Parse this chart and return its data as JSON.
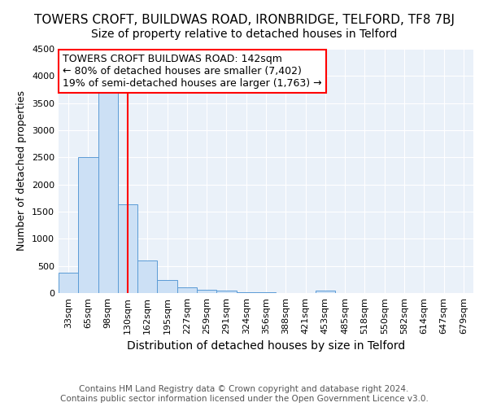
{
  "title": "TOWERS CROFT, BUILDWAS ROAD, IRONBRIDGE, TELFORD, TF8 7BJ",
  "subtitle": "Size of property relative to detached houses in Telford",
  "xlabel": "Distribution of detached houses by size in Telford",
  "ylabel": "Number of detached properties",
  "categories": [
    "33sqm",
    "65sqm",
    "98sqm",
    "130sqm",
    "162sqm",
    "195sqm",
    "227sqm",
    "259sqm",
    "291sqm",
    "324sqm",
    "356sqm",
    "388sqm",
    "421sqm",
    "453sqm",
    "485sqm",
    "518sqm",
    "550sqm",
    "582sqm",
    "614sqm",
    "647sqm",
    "679sqm"
  ],
  "values": [
    370,
    2500,
    3700,
    1630,
    600,
    240,
    110,
    55,
    40,
    20,
    20,
    5,
    5,
    50,
    0,
    0,
    0,
    0,
    0,
    0,
    0
  ],
  "bar_color": "#cce0f5",
  "bar_edge_color": "#5b9bd5",
  "red_line_x": 3.0,
  "annotation_line1": "TOWERS CROFT BUILDWAS ROAD: 142sqm",
  "annotation_line2": "← 80% of detached houses are smaller (7,402)",
  "annotation_line3": "19% of semi-detached houses are larger (1,763) →",
  "annotation_box_color": "white",
  "annotation_box_edge": "red",
  "ylim": [
    0,
    4500
  ],
  "yticks": [
    0,
    500,
    1000,
    1500,
    2000,
    2500,
    3000,
    3500,
    4000,
    4500
  ],
  "footer": "Contains HM Land Registry data © Crown copyright and database right 2024.\nContains public sector information licensed under the Open Government Licence v3.0.",
  "background_color": "#eaf1f9",
  "grid_color": "white",
  "title_fontsize": 11,
  "subtitle_fontsize": 10,
  "xlabel_fontsize": 10,
  "ylabel_fontsize": 9,
  "tick_fontsize": 8,
  "annotation_fontsize": 9,
  "footer_fontsize": 7.5
}
